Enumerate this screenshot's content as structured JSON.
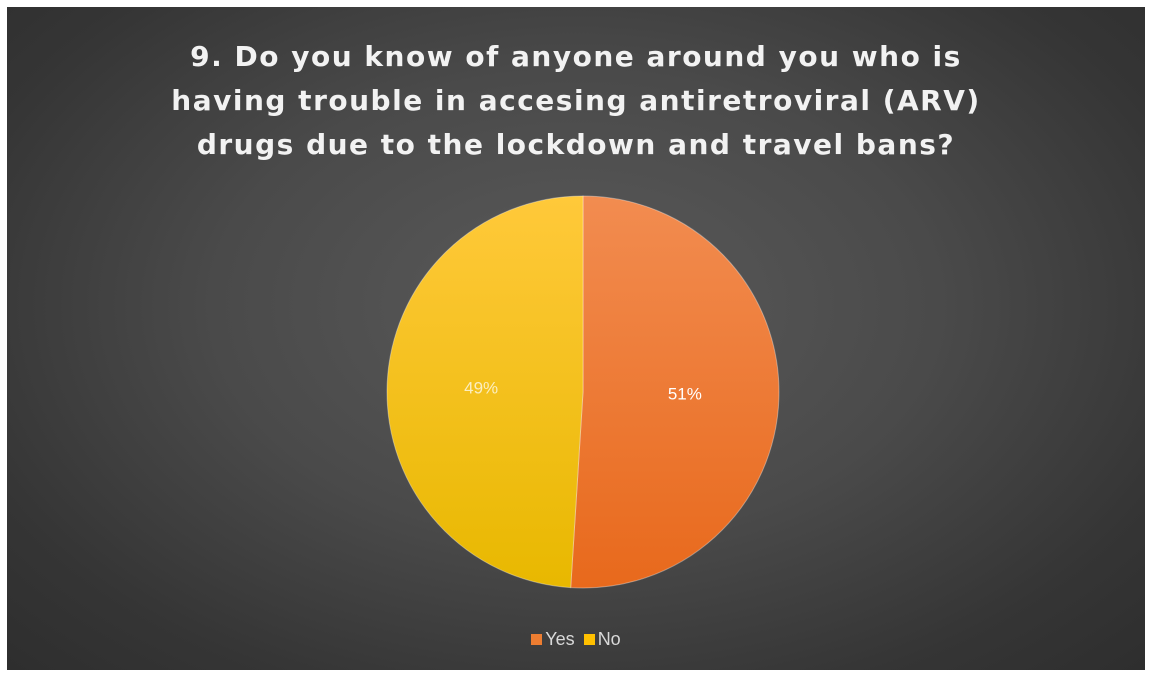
{
  "chart_data": {
    "type": "pie",
    "title": "9. Do you know of anyone around you who is having trouble in accesing antiretroviral (ARV) drugs due to the lockdown and travel bans?",
    "title_lines": [
      "9. Do you know of anyone around you who is",
      "having trouble in accesing antiretroviral (ARV)",
      "drugs due to the lockdown and travel bans?"
    ],
    "categories": [
      "Yes",
      "No"
    ],
    "values": [
      51,
      49
    ],
    "data_labels": [
      "51%",
      "49%"
    ],
    "colors": [
      "#ED7D31",
      "#FFC000"
    ],
    "legend": {
      "position": "bottom",
      "items": [
        {
          "label": "Yes",
          "color": "#ED7D31"
        },
        {
          "label": "No",
          "color": "#FFC000"
        }
      ]
    }
  }
}
